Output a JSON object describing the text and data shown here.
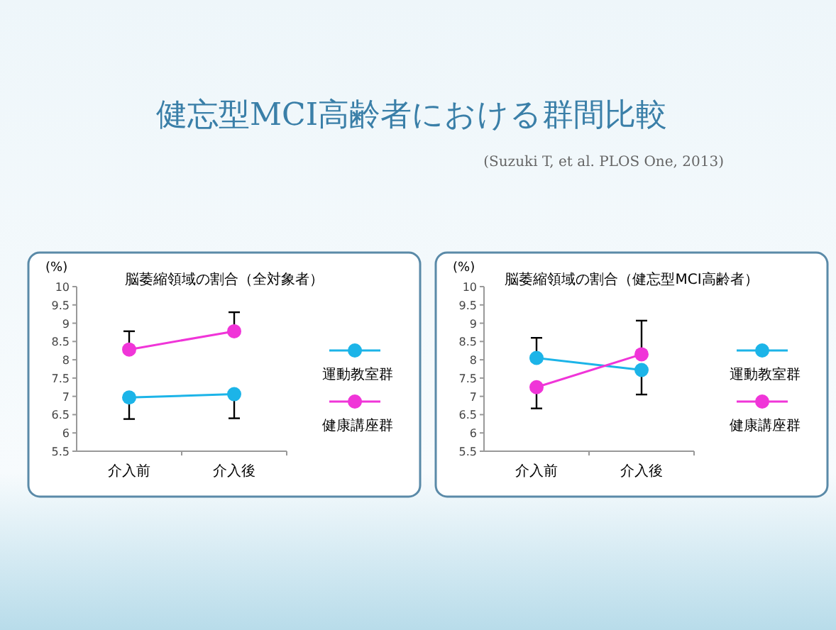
{
  "chart_data": [
    {
      "type": "line",
      "title": "脳萎縮領域の割合（全対象者）",
      "ylabel": "(%)",
      "annotations": [
        "健忘型MCI高齢者における群間比較",
        "(Suzuki T, et al. PLOS One, 2013)"
      ],
      "categories": [
        "介入前",
        "介入後"
      ],
      "ylim": [
        5.5,
        10
      ],
      "yticks": [
        5.5,
        6,
        6.5,
        7,
        7.5,
        8,
        8.5,
        9,
        9.5,
        10
      ],
      "legend": "right",
      "marker": "circle",
      "line_style": "solid",
      "grid": false,
      "series": [
        {
          "name": "運動教室群",
          "color": "#1cb4e8",
          "values": [
            6.97,
            7.06
          ],
          "errors": [
            [
              6.38,
              6.97
            ],
            [
              6.4,
              7.06
            ]
          ]
        },
        {
          "name": "健康講座群",
          "color": "#f035d8",
          "values": [
            8.28,
            8.78
          ],
          "errors": [
            [
              8.28,
              8.78
            ],
            [
              8.78,
              9.3
            ]
          ]
        }
      ]
    },
    {
      "type": "line",
      "title": "脳萎縮領域の割合（健忘型MCI高齢者）",
      "ylabel": "(%)",
      "categories": [
        "介入前",
        "介入後"
      ],
      "ylim": [
        5.5,
        10
      ],
      "yticks": [
        5.5,
        6,
        6.5,
        7,
        7.5,
        8,
        8.5,
        9,
        9.5,
        10
      ],
      "legend": "right",
      "marker": "circle",
      "line_style": "solid",
      "grid": false,
      "series": [
        {
          "name": "運動教室群",
          "color": "#1cb4e8",
          "values": [
            8.05,
            7.72
          ],
          "errors": [
            [
              8.05,
              8.6
            ],
            [
              7.05,
              7.72
            ]
          ]
        },
        {
          "name": "健康講座群",
          "color": "#f035d8",
          "values": [
            7.25,
            8.15
          ],
          "errors": [
            [
              6.67,
              7.25
            ],
            [
              8.15,
              9.07
            ]
          ]
        }
      ]
    }
  ]
}
